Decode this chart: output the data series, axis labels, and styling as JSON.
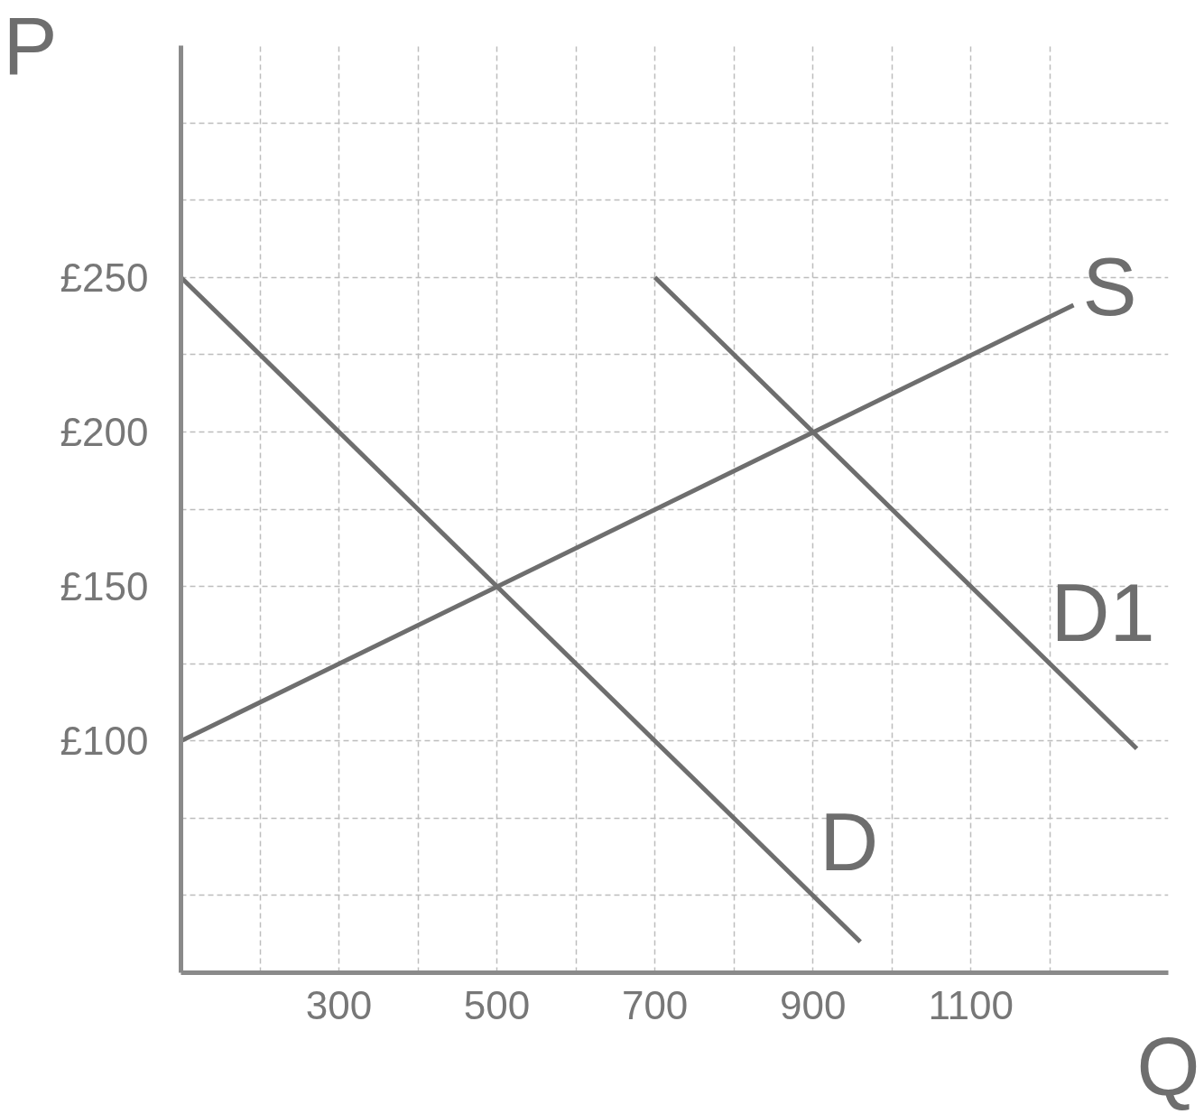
{
  "chart_data": {
    "type": "line",
    "xlabel": "Q",
    "ylabel": "P",
    "xlim": [
      100,
      1350
    ],
    "ylim": [
      25,
      325
    ],
    "xticks": [
      {
        "value": 200,
        "label": null
      },
      300,
      {
        "value": 400,
        "label": null
      },
      500,
      {
        "value": 600,
        "label": null
      },
      700,
      {
        "value": 800,
        "label": null
      },
      900,
      {
        "value": 1000,
        "label": null
      },
      1100,
      {
        "value": 1200,
        "label": null
      }
    ],
    "yticks": [
      {
        "value": 50,
        "label": null
      },
      {
        "value": 75,
        "label": null
      },
      {
        "value": 100,
        "label": "£100"
      },
      {
        "value": 125,
        "label": null
      },
      {
        "value": 150,
        "label": "£150"
      },
      {
        "value": 175,
        "label": null
      },
      {
        "value": 200,
        "label": "£200"
      },
      {
        "value": 225,
        "label": null
      },
      {
        "value": 250,
        "label": "£250"
      },
      {
        "value": 275,
        "label": null
      },
      {
        "value": 300,
        "label": null
      }
    ],
    "grid": true,
    "line_style": "solid",
    "series": [
      {
        "name": "S",
        "color": "#6e6e6e",
        "x": [
          100,
          1230
        ],
        "values": [
          100,
          241
        ]
      },
      {
        "name": "D",
        "color": "#6e6e6e",
        "x": [
          100,
          960
        ],
        "values": [
          250,
          35
        ]
      },
      {
        "name": "D1",
        "color": "#6e6e6e",
        "x": [
          700,
          1310
        ],
        "values": [
          250,
          97.5
        ]
      }
    ]
  }
}
